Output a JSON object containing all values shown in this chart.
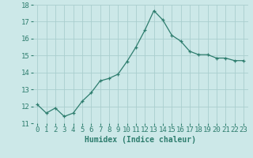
{
  "x": [
    0,
    1,
    2,
    3,
    4,
    5,
    6,
    7,
    8,
    9,
    10,
    11,
    12,
    13,
    14,
    15,
    16,
    17,
    18,
    19,
    20,
    21,
    22,
    23
  ],
  "y": [
    12.1,
    11.6,
    11.9,
    11.4,
    11.6,
    12.3,
    12.8,
    13.5,
    13.65,
    13.9,
    14.65,
    15.5,
    16.5,
    17.65,
    17.1,
    16.2,
    15.85,
    15.25,
    15.05,
    15.05,
    14.85,
    14.85,
    14.7,
    14.7
  ],
  "xlabel": "Humidex (Indice chaleur)",
  "ylim": [
    11,
    18
  ],
  "xlim": [
    -0.5,
    23.5
  ],
  "yticks": [
    11,
    12,
    13,
    14,
    15,
    16,
    17,
    18
  ],
  "xticks": [
    0,
    1,
    2,
    3,
    4,
    5,
    6,
    7,
    8,
    9,
    10,
    11,
    12,
    13,
    14,
    15,
    16,
    17,
    18,
    19,
    20,
    21,
    22,
    23
  ],
  "line_color": "#2e7d6e",
  "marker_color": "#2e7d6e",
  "bg_color": "#cce8e8",
  "grid_color": "#aacece",
  "xlabel_fontsize": 7,
  "tick_fontsize": 6.5
}
